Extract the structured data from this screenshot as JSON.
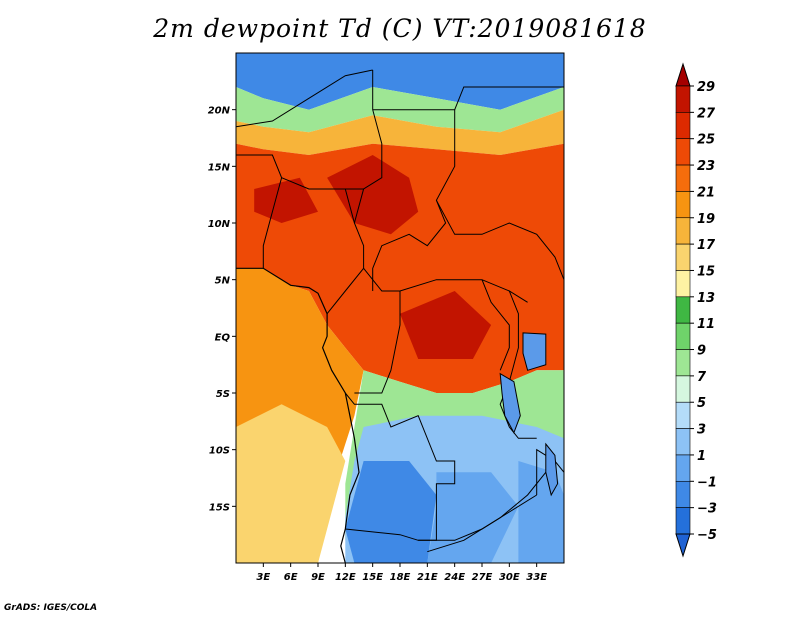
{
  "title": "2m dewpoint Td (C) VT:2019081618",
  "credit": "GrADS: IGES/COLA",
  "map": {
    "lon_range": [
      0,
      36
    ],
    "lat_range": [
      -20,
      25
    ],
    "lat_ticks": [
      {
        "value": 20,
        "label": "20N"
      },
      {
        "value": 15,
        "label": "15N"
      },
      {
        "value": 10,
        "label": "10N"
      },
      {
        "value": 5,
        "label": "5N"
      },
      {
        "value": 0,
        "label": "EQ"
      },
      {
        "value": -5,
        "label": "5S"
      },
      {
        "value": -10,
        "label": "10S"
      },
      {
        "value": -15,
        "label": "15S"
      }
    ],
    "lon_ticks": [
      {
        "value": 3,
        "label": "3E"
      },
      {
        "value": 6,
        "label": "6E"
      },
      {
        "value": 9,
        "label": "9E"
      },
      {
        "value": 12,
        "label": "12E"
      },
      {
        "value": 15,
        "label": "15E"
      },
      {
        "value": 18,
        "label": "18E"
      },
      {
        "value": 21,
        "label": "21E"
      },
      {
        "value": 24,
        "label": "24E"
      },
      {
        "value": 27,
        "label": "27E"
      },
      {
        "value": 30,
        "label": "30E"
      },
      {
        "value": 33,
        "label": "33E"
      }
    ]
  },
  "colorbar": {
    "labels": [
      "29",
      "27",
      "25",
      "23",
      "21",
      "19",
      "17",
      "15",
      "13",
      "11",
      "9",
      "7",
      "5",
      "3",
      "1",
      "−1",
      "−3",
      "−5"
    ],
    "colors": [
      "#a50000",
      "#c21400",
      "#dd2a00",
      "#ee4a06",
      "#f56d0c",
      "#f79411",
      "#f7b43a",
      "#fad46e",
      "#fef2a3",
      "#3fb743",
      "#6fd36a",
      "#9ee694",
      "#d5f7df",
      "#b4dcf9",
      "#8dc2f5",
      "#64a6ef",
      "#3f89e6",
      "#2470db",
      "#1f62d3"
    ]
  },
  "regions": [
    {
      "name": "sahara-north",
      "color": "#3f89e6",
      "coords": [
        [
          0,
          25
        ],
        [
          36,
          25
        ],
        [
          36,
          22
        ],
        [
          29,
          20
        ],
        [
          22,
          21
        ],
        [
          15,
          22
        ],
        [
          8,
          20
        ],
        [
          3,
          21
        ],
        [
          0,
          22
        ]
      ]
    },
    {
      "name": "sahara-fringe",
      "color": "#9ee694",
      "coords": [
        [
          0,
          22
        ],
        [
          3,
          21
        ],
        [
          8,
          20
        ],
        [
          15,
          22
        ],
        [
          22,
          21
        ],
        [
          29,
          20
        ],
        [
          36,
          22
        ],
        [
          36,
          20
        ],
        [
          29,
          18
        ],
        [
          22,
          18.5
        ],
        [
          15,
          19.5
        ],
        [
          8,
          18
        ],
        [
          3,
          18.5
        ],
        [
          0,
          19
        ]
      ]
    },
    {
      "name": "sahel-orange",
      "color": "#f7b43a",
      "coords": [
        [
          0,
          19
        ],
        [
          3,
          18.5
        ],
        [
          8,
          18
        ],
        [
          15,
          19.5
        ],
        [
          22,
          18.5
        ],
        [
          29,
          18
        ],
        [
          36,
          20
        ],
        [
          36,
          17
        ],
        [
          29,
          16
        ],
        [
          22,
          16.5
        ],
        [
          15,
          17
        ],
        [
          8,
          16
        ],
        [
          3,
          16.5
        ],
        [
          0,
          17
        ]
      ]
    },
    {
      "name": "west-africa-red",
      "color": "#ee4a06",
      "coords": [
        [
          0,
          17
        ],
        [
          3,
          16.5
        ],
        [
          8,
          16
        ],
        [
          15,
          17
        ],
        [
          22,
          16.5
        ],
        [
          29,
          16
        ],
        [
          36,
          17
        ],
        [
          36,
          -3
        ],
        [
          33,
          -3
        ],
        [
          30,
          -4
        ],
        [
          26,
          -5
        ],
        [
          22,
          -5
        ],
        [
          18,
          -4
        ],
        [
          14,
          -3
        ],
        [
          12,
          -1
        ],
        [
          10,
          1
        ],
        [
          8,
          4
        ],
        [
          6,
          4.5
        ],
        [
          3,
          6
        ],
        [
          0,
          6
        ]
      ]
    },
    {
      "name": "core-darkred-1",
      "color": "#c21400",
      "coords": [
        [
          10,
          14
        ],
        [
          15,
          16
        ],
        [
          19,
          14
        ],
        [
          20,
          11
        ],
        [
          17,
          9
        ],
        [
          13,
          10
        ]
      ]
    },
    {
      "name": "core-darkred-2",
      "color": "#c21400",
      "coords": [
        [
          18,
          2
        ],
        [
          24,
          4
        ],
        [
          28,
          1
        ],
        [
          26,
          -2
        ],
        [
          20,
          -2
        ]
      ]
    },
    {
      "name": "core-darkred-3",
      "color": "#c21400",
      "coords": [
        [
          2,
          13
        ],
        [
          7,
          14
        ],
        [
          9,
          11
        ],
        [
          5,
          10
        ],
        [
          2,
          11
        ]
      ]
    },
    {
      "name": "atlantic-orange",
      "color": "#f79411",
      "coords": [
        [
          0,
          6
        ],
        [
          3,
          6
        ],
        [
          6,
          4.5
        ],
        [
          8,
          4
        ],
        [
          10,
          1
        ],
        [
          12,
          -1
        ],
        [
          14,
          -3
        ],
        [
          13,
          -7
        ],
        [
          11,
          -12
        ],
        [
          9,
          -20
        ],
        [
          0,
          -20
        ]
      ]
    },
    {
      "name": "atlantic-yellow",
      "color": "#fad46e",
      "coords": [
        [
          0,
          -8
        ],
        [
          5,
          -6
        ],
        [
          10,
          -8
        ],
        [
          12,
          -11
        ],
        [
          11,
          -14
        ],
        [
          9,
          -20
        ],
        [
          0,
          -20
        ]
      ]
    },
    {
      "name": "congo-green",
      "color": "#9ee694",
      "coords": [
        [
          14,
          -3
        ],
        [
          18,
          -4
        ],
        [
          22,
          -5
        ],
        [
          26,
          -5
        ],
        [
          30,
          -4
        ],
        [
          33,
          -3
        ],
        [
          36,
          -3
        ],
        [
          36,
          -20
        ],
        [
          27,
          -20
        ],
        [
          20,
          -20
        ],
        [
          14,
          -20
        ],
        [
          12,
          -18
        ],
        [
          12,
          -13
        ],
        [
          13,
          -8
        ]
      ]
    },
    {
      "name": "angola-lightblue",
      "color": "#8dc2f5",
      "coords": [
        [
          14,
          -8
        ],
        [
          20,
          -7
        ],
        [
          27,
          -7
        ],
        [
          33,
          -8
        ],
        [
          36,
          -9
        ],
        [
          36,
          -20
        ],
        [
          12,
          -20
        ],
        [
          12,
          -16
        ],
        [
          13,
          -11
        ]
      ]
    },
    {
      "name": "angola-blue",
      "color": "#3f89e6",
      "coords": [
        [
          14,
          -11
        ],
        [
          19,
          -11
        ],
        [
          22,
          -14
        ],
        [
          21,
          -20
        ],
        [
          13,
          -20
        ],
        [
          12,
          -17
        ]
      ]
    },
    {
      "name": "zambia-blue",
      "color": "#64a6ef",
      "coords": [
        [
          22,
          -12
        ],
        [
          28,
          -12
        ],
        [
          31,
          -15
        ],
        [
          28,
          -20
        ],
        [
          21,
          -20
        ],
        [
          22,
          -15
        ]
      ]
    },
    {
      "name": "mozambique-blue",
      "color": "#64a6ef",
      "coords": [
        [
          31,
          -11
        ],
        [
          35,
          -12
        ],
        [
          36,
          -14
        ],
        [
          36,
          -20
        ],
        [
          31,
          -20
        ],
        [
          31,
          -16
        ]
      ]
    }
  ],
  "borders": [
    [
      [
        0,
        18.5
      ],
      [
        4,
        19
      ],
      [
        8,
        21
      ],
      [
        12,
        23
      ],
      [
        15,
        23.5
      ]
    ],
    [
      [
        15,
        23.5
      ],
      [
        15,
        20
      ],
      [
        16,
        17
      ],
      [
        16,
        14
      ],
      [
        14,
        13
      ],
      [
        13,
        10
      ]
    ],
    [
      [
        15,
        20
      ],
      [
        24,
        20
      ],
      [
        24,
        15
      ],
      [
        22,
        12
      ],
      [
        23,
        10
      ],
      [
        21,
        8
      ],
      [
        19,
        9
      ],
      [
        16,
        8
      ],
      [
        15,
        6
      ],
      [
        15,
        4
      ]
    ],
    [
      [
        24,
        20
      ],
      [
        25,
        22
      ],
      [
        36,
        22
      ]
    ],
    [
      [
        0,
        16
      ],
      [
        4,
        16
      ],
      [
        5,
        14
      ],
      [
        4,
        11
      ],
      [
        3,
        8
      ],
      [
        3,
        6
      ]
    ],
    [
      [
        5,
        14
      ],
      [
        8,
        13
      ],
      [
        12,
        13
      ],
      [
        14,
        13
      ]
    ],
    [
      [
        12,
        13
      ],
      [
        13,
        10
      ],
      [
        14,
        8
      ],
      [
        14,
        6
      ],
      [
        12,
        4
      ],
      [
        10,
        2
      ]
    ],
    [
      [
        14,
        6
      ],
      [
        16,
        4
      ],
      [
        18,
        4
      ],
      [
        22,
        5
      ],
      [
        27,
        5
      ],
      [
        30,
        4
      ],
      [
        32,
        3
      ]
    ],
    [
      [
        22,
        12
      ],
      [
        24,
        9
      ],
      [
        27,
        9
      ],
      [
        30,
        10
      ],
      [
        33,
        9
      ],
      [
        35,
        7
      ],
      [
        36,
        5
      ]
    ],
    [
      [
        27,
        5
      ],
      [
        28,
        3
      ],
      [
        30,
        1
      ],
      [
        30,
        -1
      ],
      [
        29,
        -3
      ]
    ],
    [
      [
        30,
        4
      ],
      [
        31,
        2
      ],
      [
        31,
        -1
      ],
      [
        30,
        -4
      ],
      [
        29,
        -6
      ],
      [
        30,
        -8
      ],
      [
        31,
        -9
      ],
      [
        33,
        -9
      ]
    ],
    [
      [
        18,
        4
      ],
      [
        18,
        1
      ],
      [
        17,
        -3
      ],
      [
        16,
        -5
      ],
      [
        13,
        -5
      ]
    ],
    [
      [
        12,
        -5
      ],
      [
        13,
        -6
      ],
      [
        16,
        -6
      ],
      [
        17,
        -8
      ],
      [
        20,
        -7
      ],
      [
        22,
        -11
      ],
      [
        24,
        -11
      ],
      [
        24,
        -13
      ],
      [
        22,
        -13
      ],
      [
        22,
        -18
      ],
      [
        20,
        -18
      ]
    ],
    [
      [
        12,
        -17
      ],
      [
        18,
        -17.5
      ],
      [
        20,
        -18
      ],
      [
        24,
        -18
      ],
      [
        27,
        -17
      ],
      [
        30,
        -15.5
      ],
      [
        33,
        -14
      ]
    ],
    [
      [
        33,
        -14
      ],
      [
        33,
        -10
      ],
      [
        35,
        -11
      ],
      [
        36,
        -12
      ]
    ],
    [
      [
        21,
        -19
      ],
      [
        25,
        -18
      ],
      [
        29,
        -16
      ],
      [
        32,
        -14
      ],
      [
        34,
        -12
      ]
    ]
  ],
  "coastline": [
    [
      0,
      6
    ],
    [
      3,
      6
    ],
    [
      6,
      4.5
    ],
    [
      8,
      4.3
    ],
    [
      9,
      3.8
    ],
    [
      10,
      2
    ],
    [
      10,
      0
    ],
    [
      9.5,
      -1
    ],
    [
      10.5,
      -3
    ],
    [
      12,
      -5
    ],
    [
      12.5,
      -7
    ],
    [
      13,
      -9
    ],
    [
      13.5,
      -12
    ],
    [
      12.5,
      -14
    ],
    [
      12,
      -17
    ],
    [
      11.5,
      -18.5
    ],
    [
      12,
      -20
    ]
  ],
  "lakes": [
    {
      "name": "lake-victoria",
      "coords": [
        [
          31.5,
          0.3
        ],
        [
          34,
          0.2
        ],
        [
          34,
          -2.5
        ],
        [
          32,
          -3
        ],
        [
          31.5,
          -1.5
        ]
      ]
    },
    {
      "name": "lake-tanganyika",
      "coords": [
        [
          29,
          -3.3
        ],
        [
          30.5,
          -4
        ],
        [
          31.2,
          -7
        ],
        [
          30.5,
          -8.5
        ],
        [
          29.5,
          -7
        ],
        [
          29.2,
          -5
        ]
      ]
    },
    {
      "name": "lake-malawi",
      "coords": [
        [
          34,
          -9.5
        ],
        [
          35,
          -10.5
        ],
        [
          35.3,
          -13
        ],
        [
          34.6,
          -14
        ],
        [
          34,
          -12
        ]
      ]
    }
  ]
}
